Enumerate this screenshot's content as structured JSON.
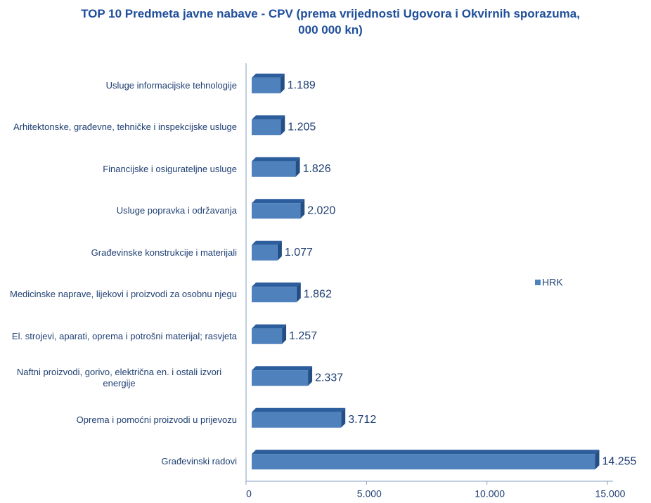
{
  "chart_data": {
    "type": "bar3d_horizontal",
    "title": "TOP 10 Predmeta javne nabave - CPV (prema vrijednosti Ugovora i Okvirnih sporazuma, 000 000 kn)",
    "categories": [
      "Usluge informacijske tehnologije",
      "Arhitektonske, građevne, tehničke i inspekcijske usluge",
      "Financijske i osigurateljne usluge",
      "Usluge popravka i održavanja",
      "Građevinske konstrukcije i materijali",
      "Medicinske naprave, lijekovi i proizvodi za osobnu njegu",
      "El. strojevi, aparati, oprema i potrošni materijal; rasvjeta",
      "Naftni proizvodi, gorivo, električna en. i ostali izvori energije",
      "Oprema i pomoćni proizvodi u prijevozu",
      "Građevinski radovi"
    ],
    "series": [
      {
        "name": "HRK",
        "color": "#4f81bd",
        "values": [
          1189,
          1205,
          1826,
          2020,
          1077,
          1862,
          1257,
          2337,
          3712,
          14255
        ],
        "value_labels": [
          "1.189",
          "1.205",
          "1.826",
          "2.020",
          "1.077",
          "1.862",
          "1.257",
          "2.337",
          "3.712",
          "14.255"
        ]
      }
    ],
    "xlim": [
      0,
      15000
    ],
    "xticks": [
      0,
      {
        "value": 5000,
        "label": "5.000"
      },
      {
        "value": 10000,
        "label": "10.000"
      },
      {
        "value": 15000,
        "label": "15.000"
      }
    ],
    "legend": "right"
  }
}
